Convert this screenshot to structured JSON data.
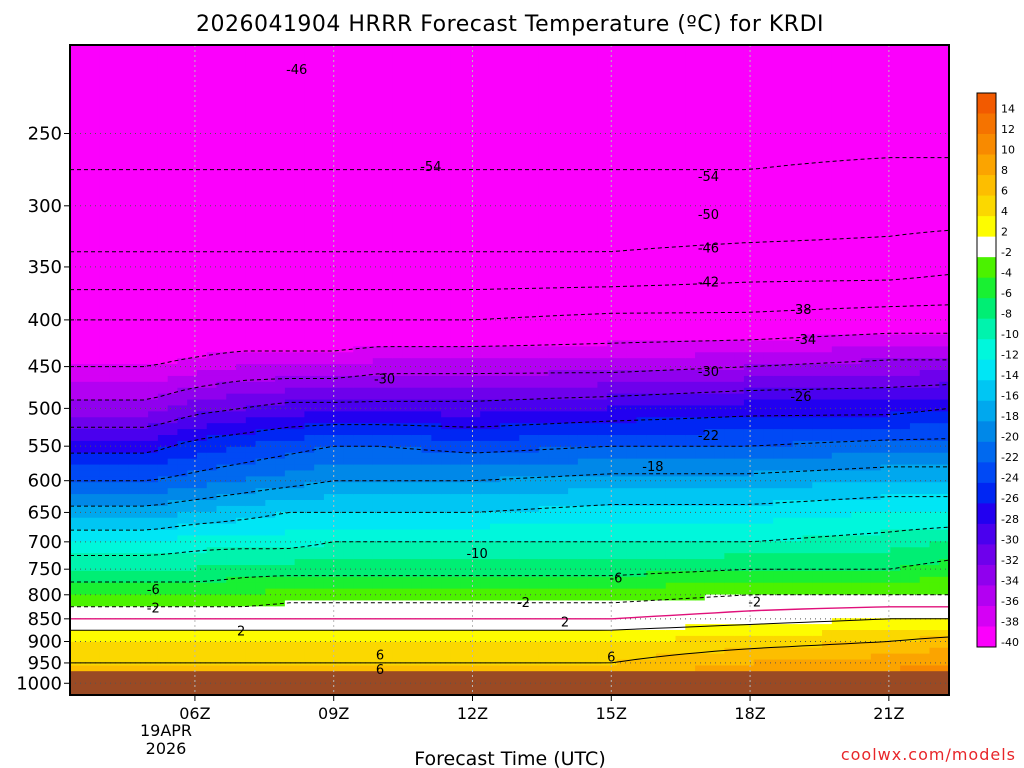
{
  "chart_data": {
    "type": "heatmap",
    "title": "2026041904 HRRR Forecast Temperature (ºC) for KRDI",
    "xlabel": "Forecast Time (UTC)",
    "ylabel": "",
    "x_range_hours": [
      3.3,
      22.3
    ],
    "x_ticks": [
      {
        "hour": 6,
        "label": "06Z"
      },
      {
        "hour": 9,
        "label": "09Z"
      },
      {
        "hour": 12,
        "label": "12Z"
      },
      {
        "hour": 15,
        "label": "15Z"
      },
      {
        "hour": 18,
        "label": "18Z"
      },
      {
        "hour": 21,
        "label": "21Z"
      }
    ],
    "date_label": [
      "19APR",
      "2026"
    ],
    "y_scale": "log-pressure",
    "y_range_hpa": [
      200,
      1030
    ],
    "y_ticks": [
      250,
      300,
      350,
      400,
      450,
      500,
      550,
      600,
      650,
      700,
      750,
      800,
      850,
      900,
      950,
      1000
    ],
    "y_tick_labels": [
      "250",
      "300",
      "350",
      "400",
      "450",
      "500",
      "550",
      "600",
      "650",
      "700",
      "750",
      "800",
      "850",
      "900",
      "950",
      "1000"
    ],
    "ground_pressure_hpa": 970,
    "ground_color": "#9a4a24",
    "grid": true,
    "colorbar": {
      "levels": [
        14,
        12,
        10,
        8,
        6,
        4,
        2,
        -2,
        -4,
        -6,
        -8,
        -10,
        -12,
        -14,
        -16,
        -18,
        -20,
        -22,
        -24,
        -26,
        -28,
        -30,
        -32,
        -34,
        -36,
        -38,
        -40
      ],
      "labels": [
        "14",
        "12",
        "10",
        "8",
        "6",
        "4",
        "2",
        "-2",
        "-4",
        "-6",
        "-8",
        "-10",
        "-12",
        "-14",
        "-16",
        "-18",
        "-20",
        "-22",
        "-24",
        "-26",
        "-28",
        "-30",
        "-32",
        "-34",
        "-36",
        "-38",
        "-40"
      ],
      "colors": [
        "#f25a00",
        "#f57300",
        "#f88a00",
        "#fba400",
        "#fdbe00",
        "#fbd800",
        "#fdfc00",
        "#ffffff",
        "#4bf200",
        "#19f032",
        "#00ee74",
        "#00f3ad",
        "#00f7dc",
        "#00e6f5",
        "#00c6f3",
        "#00a8ee",
        "#0088e8",
        "#0069ef",
        "#0049f5",
        "#0026f3",
        "#2200f0",
        "#4a00ee",
        "#6e00ec",
        "#9000ee",
        "#b300f2",
        "#d500f5",
        "#fb00fc"
      ]
    },
    "temperature_profile": {
      "hours": [
        3.3,
        5,
        6,
        7,
        8,
        9,
        10,
        12,
        15,
        18,
        21,
        22.3
      ],
      "pressure_hpa": [
        225,
        250,
        300,
        350,
        400,
        450,
        500,
        550,
        600,
        650,
        700,
        750,
        800,
        850,
        900,
        950,
        1000
      ],
      "temp_c": [
        [
          -55,
          -55,
          -53,
          -49,
          -42,
          -38,
          -33,
          -27,
          -22,
          -17,
          -12,
          -8,
          -4,
          0,
          4,
          6,
          8
        ],
        [
          -55,
          -55,
          -53,
          -49,
          -42,
          -38,
          -33,
          -27,
          -22,
          -17,
          -12,
          -8,
          -4,
          0,
          4,
          6,
          8
        ],
        [
          -55,
          -55,
          -53,
          -49,
          -42,
          -37,
          -31,
          -25,
          -21,
          -16,
          -11,
          -8,
          -4,
          0,
          4,
          6,
          8
        ],
        [
          -55,
          -55,
          -53,
          -49,
          -42,
          -36,
          -30,
          -24,
          -20,
          -15,
          -11,
          -7,
          -4,
          0,
          4,
          6,
          8
        ],
        [
          -55,
          -55,
          -53,
          -49,
          -42,
          -36,
          -29,
          -23,
          -19,
          -14,
          -11,
          -7,
          -3,
          0,
          4,
          6,
          8
        ],
        [
          -55,
          -55,
          -53,
          -49,
          -42,
          -36,
          -29,
          -22,
          -18,
          -14,
          -10,
          -7,
          -3,
          0,
          4,
          6,
          8
        ],
        [
          -55,
          -55,
          -53,
          -49,
          -42,
          -35,
          -29,
          -22,
          -18,
          -14,
          -10,
          -7,
          -3,
          0,
          4,
          6,
          8
        ],
        [
          -55,
          -55,
          -53,
          -49,
          -42,
          -35,
          -29,
          -23,
          -18,
          -14,
          -10,
          -7,
          -3,
          0,
          4,
          6,
          8
        ],
        [
          -55,
          -55,
          -53,
          -49,
          -41,
          -35,
          -28,
          -22,
          -17,
          -13,
          -10,
          -7,
          -3,
          0,
          4,
          6,
          9
        ],
        [
          -55,
          -55,
          -53,
          -48,
          -41,
          -34,
          -27,
          -22,
          -17,
          -13,
          -10,
          -6,
          -2,
          1,
          5,
          8,
          11
        ],
        [
          -55,
          -55,
          -52,
          -48,
          -40,
          -33,
          -27,
          -21,
          -16,
          -12,
          -9,
          -6,
          -2,
          2,
          6,
          9,
          12
        ],
        [
          -55,
          -55,
          -52,
          -47,
          -40,
          -33,
          -26,
          -21,
          -16,
          -12,
          -8,
          -5,
          -2,
          2,
          7,
          10,
          13
        ]
      ]
    },
    "contour_labels": [
      {
        "hour": 8.2,
        "p": 213,
        "text": "-46"
      },
      {
        "hour": 11.1,
        "p": 272,
        "text": "-54"
      },
      {
        "hour": 17.1,
        "p": 279,
        "text": "-54"
      },
      {
        "hour": 17.1,
        "p": 307,
        "text": "-50"
      },
      {
        "hour": 17.1,
        "p": 334,
        "text": "-46"
      },
      {
        "hour": 17.1,
        "p": 364,
        "text": "-42"
      },
      {
        "hour": 19.1,
        "p": 390,
        "text": "-38"
      },
      {
        "hour": 19.2,
        "p": 421,
        "text": "-34"
      },
      {
        "hour": 10.1,
        "p": 465,
        "text": "-30"
      },
      {
        "hour": 17.1,
        "p": 456,
        "text": "-30"
      },
      {
        "hour": 19.1,
        "p": 486,
        "text": "-26"
      },
      {
        "hour": 17.1,
        "p": 536,
        "text": "-22"
      },
      {
        "hour": 15.9,
        "p": 580,
        "text": "-18"
      },
      {
        "hour": 12.1,
        "p": 722,
        "text": "-10"
      },
      {
        "hour": 5.1,
        "p": 790,
        "text": "-6"
      },
      {
        "hour": 15.1,
        "p": 768,
        "text": "-6"
      },
      {
        "hour": 5.1,
        "p": 828,
        "text": "-2"
      },
      {
        "hour": 13.1,
        "p": 817,
        "text": "-2"
      },
      {
        "hour": 18.1,
        "p": 816,
        "text": "-2"
      },
      {
        "hour": 7.0,
        "p": 878,
        "text": "2"
      },
      {
        "hour": 14.0,
        "p": 858,
        "text": "2"
      },
      {
        "hour": 10.0,
        "p": 932,
        "text": "6"
      },
      {
        "hour": 15.0,
        "p": 937,
        "text": "6"
      },
      {
        "hour": 10.0,
        "p": 967,
        "text": "6"
      }
    ]
  },
  "credit": "coolwx.com/models"
}
